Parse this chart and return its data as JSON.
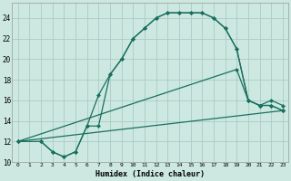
{
  "xlabel": "Humidex (Indice chaleur)",
  "bg_color": "#cce8e0",
  "grid_color": "#aaccC4",
  "line_color": "#1a7060",
  "xlim": [
    -0.5,
    23.5
  ],
  "ylim": [
    10,
    25.5
  ],
  "xticks": [
    0,
    1,
    2,
    3,
    4,
    5,
    6,
    7,
    8,
    9,
    10,
    11,
    12,
    13,
    14,
    15,
    16,
    17,
    18,
    19,
    20,
    21,
    22,
    23
  ],
  "yticks": [
    10,
    12,
    14,
    16,
    18,
    20,
    22,
    24
  ],
  "curve1_x": [
    0,
    2,
    3,
    4,
    5,
    6,
    7,
    8,
    9,
    10,
    11,
    12,
    13,
    14,
    15,
    16,
    17,
    18,
    19,
    20,
    21,
    22,
    23
  ],
  "curve1_y": [
    12,
    12,
    11,
    10.5,
    11,
    13.5,
    16.5,
    18.5,
    20,
    22,
    23,
    24,
    24.5,
    24.5,
    24.5,
    24.5,
    24,
    23,
    21,
    16,
    15.5,
    15.5,
    15
  ],
  "curve2_x": [
    2,
    3,
    4,
    5,
    6,
    7,
    8,
    9,
    10,
    11,
    12,
    13,
    14,
    15,
    16,
    17,
    18,
    19,
    20,
    21,
    22,
    23
  ],
  "curve2_y": [
    12,
    11,
    10.5,
    11,
    13.5,
    13.5,
    18.5,
    20,
    22,
    23,
    24,
    24.5,
    24.5,
    24.5,
    24.5,
    24,
    23,
    21,
    16,
    15.5,
    15.5,
    15
  ],
  "line1_x": [
    0,
    23
  ],
  "line1_y": [
    12,
    15
  ],
  "line2_x": [
    0,
    19,
    20,
    21,
    22,
    23
  ],
  "line2_y": [
    12,
    19,
    16,
    15.5,
    16,
    15.5
  ]
}
